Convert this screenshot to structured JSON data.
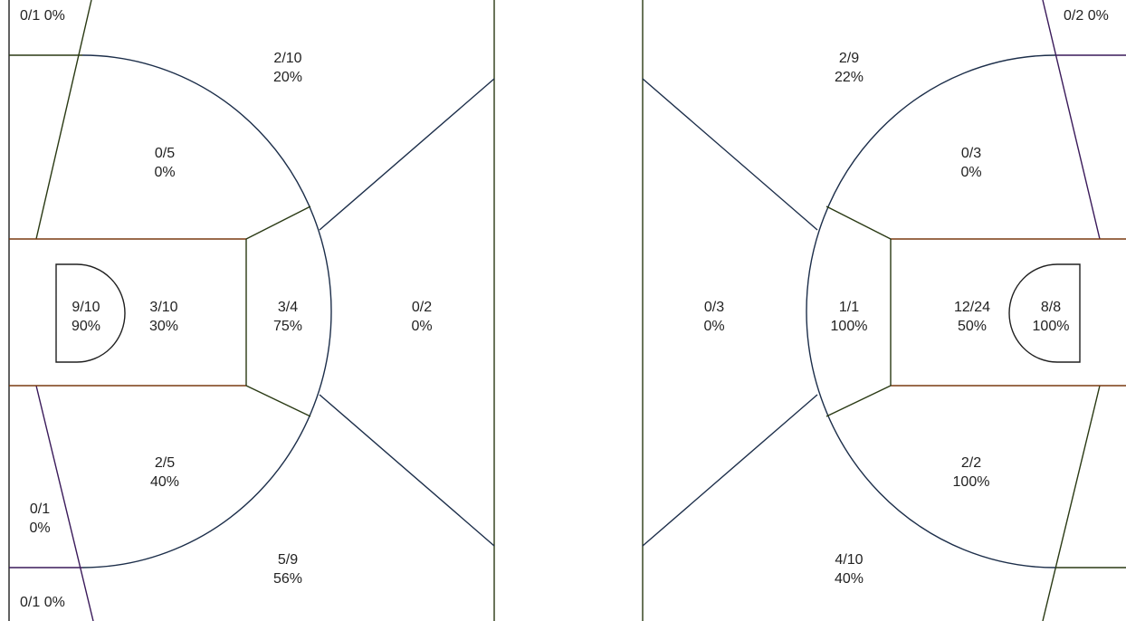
{
  "colors": {
    "background": "#ffffff",
    "text": "#222222",
    "stroke_dark_green": "#2a3a14",
    "stroke_navy": "#1c2e4a",
    "stroke_purple": "#3a1a5a",
    "stroke_orange": "#7a3a10",
    "stroke_black": "#202020"
  },
  "left_half": {
    "zones": [
      {
        "id": "left-top-corner",
        "line1": "0/1 0%",
        "line2": ""
      },
      {
        "id": "left-upper-wing-three",
        "line1": "2/10",
        "line2": "20%"
      },
      {
        "id": "left-upper-midrange",
        "line1": "0/5",
        "line2": "0%"
      },
      {
        "id": "left-restricted-area",
        "line1": "9/10",
        "line2": "90%"
      },
      {
        "id": "left-paint",
        "line1": "3/10",
        "line2": "30%"
      },
      {
        "id": "left-free-throw",
        "line1": "3/4",
        "line2": "75%"
      },
      {
        "id": "left-top-key-three",
        "line1": "0/2",
        "line2": "0%"
      },
      {
        "id": "left-lower-midrange",
        "line1": "2/5",
        "line2": "40%"
      },
      {
        "id": "left-lower-baseline",
        "line1": "0/1",
        "line2": "0%"
      },
      {
        "id": "left-lower-wing-three",
        "line1": "5/9",
        "line2": "56%"
      },
      {
        "id": "left-bottom-corner",
        "line1": "0/1 0%",
        "line2": ""
      }
    ]
  },
  "right_half": {
    "zones": [
      {
        "id": "right-top-corner",
        "line1": "0/2 0%",
        "line2": ""
      },
      {
        "id": "right-upper-wing-three",
        "line1": "2/9",
        "line2": "22%"
      },
      {
        "id": "right-upper-midrange",
        "line1": "0/3",
        "line2": "0%"
      },
      {
        "id": "right-top-key-three",
        "line1": "0/3",
        "line2": "0%"
      },
      {
        "id": "right-free-throw",
        "line1": "1/1",
        "line2": "100%"
      },
      {
        "id": "right-paint",
        "line1": "12/24",
        "line2": "50%"
      },
      {
        "id": "right-restricted-area",
        "line1": "8/8",
        "line2": "100%"
      },
      {
        "id": "right-lower-midrange",
        "line1": "2/2",
        "line2": "100%"
      },
      {
        "id": "right-lower-wing-three",
        "line1": "4/10",
        "line2": "40%"
      }
    ]
  }
}
